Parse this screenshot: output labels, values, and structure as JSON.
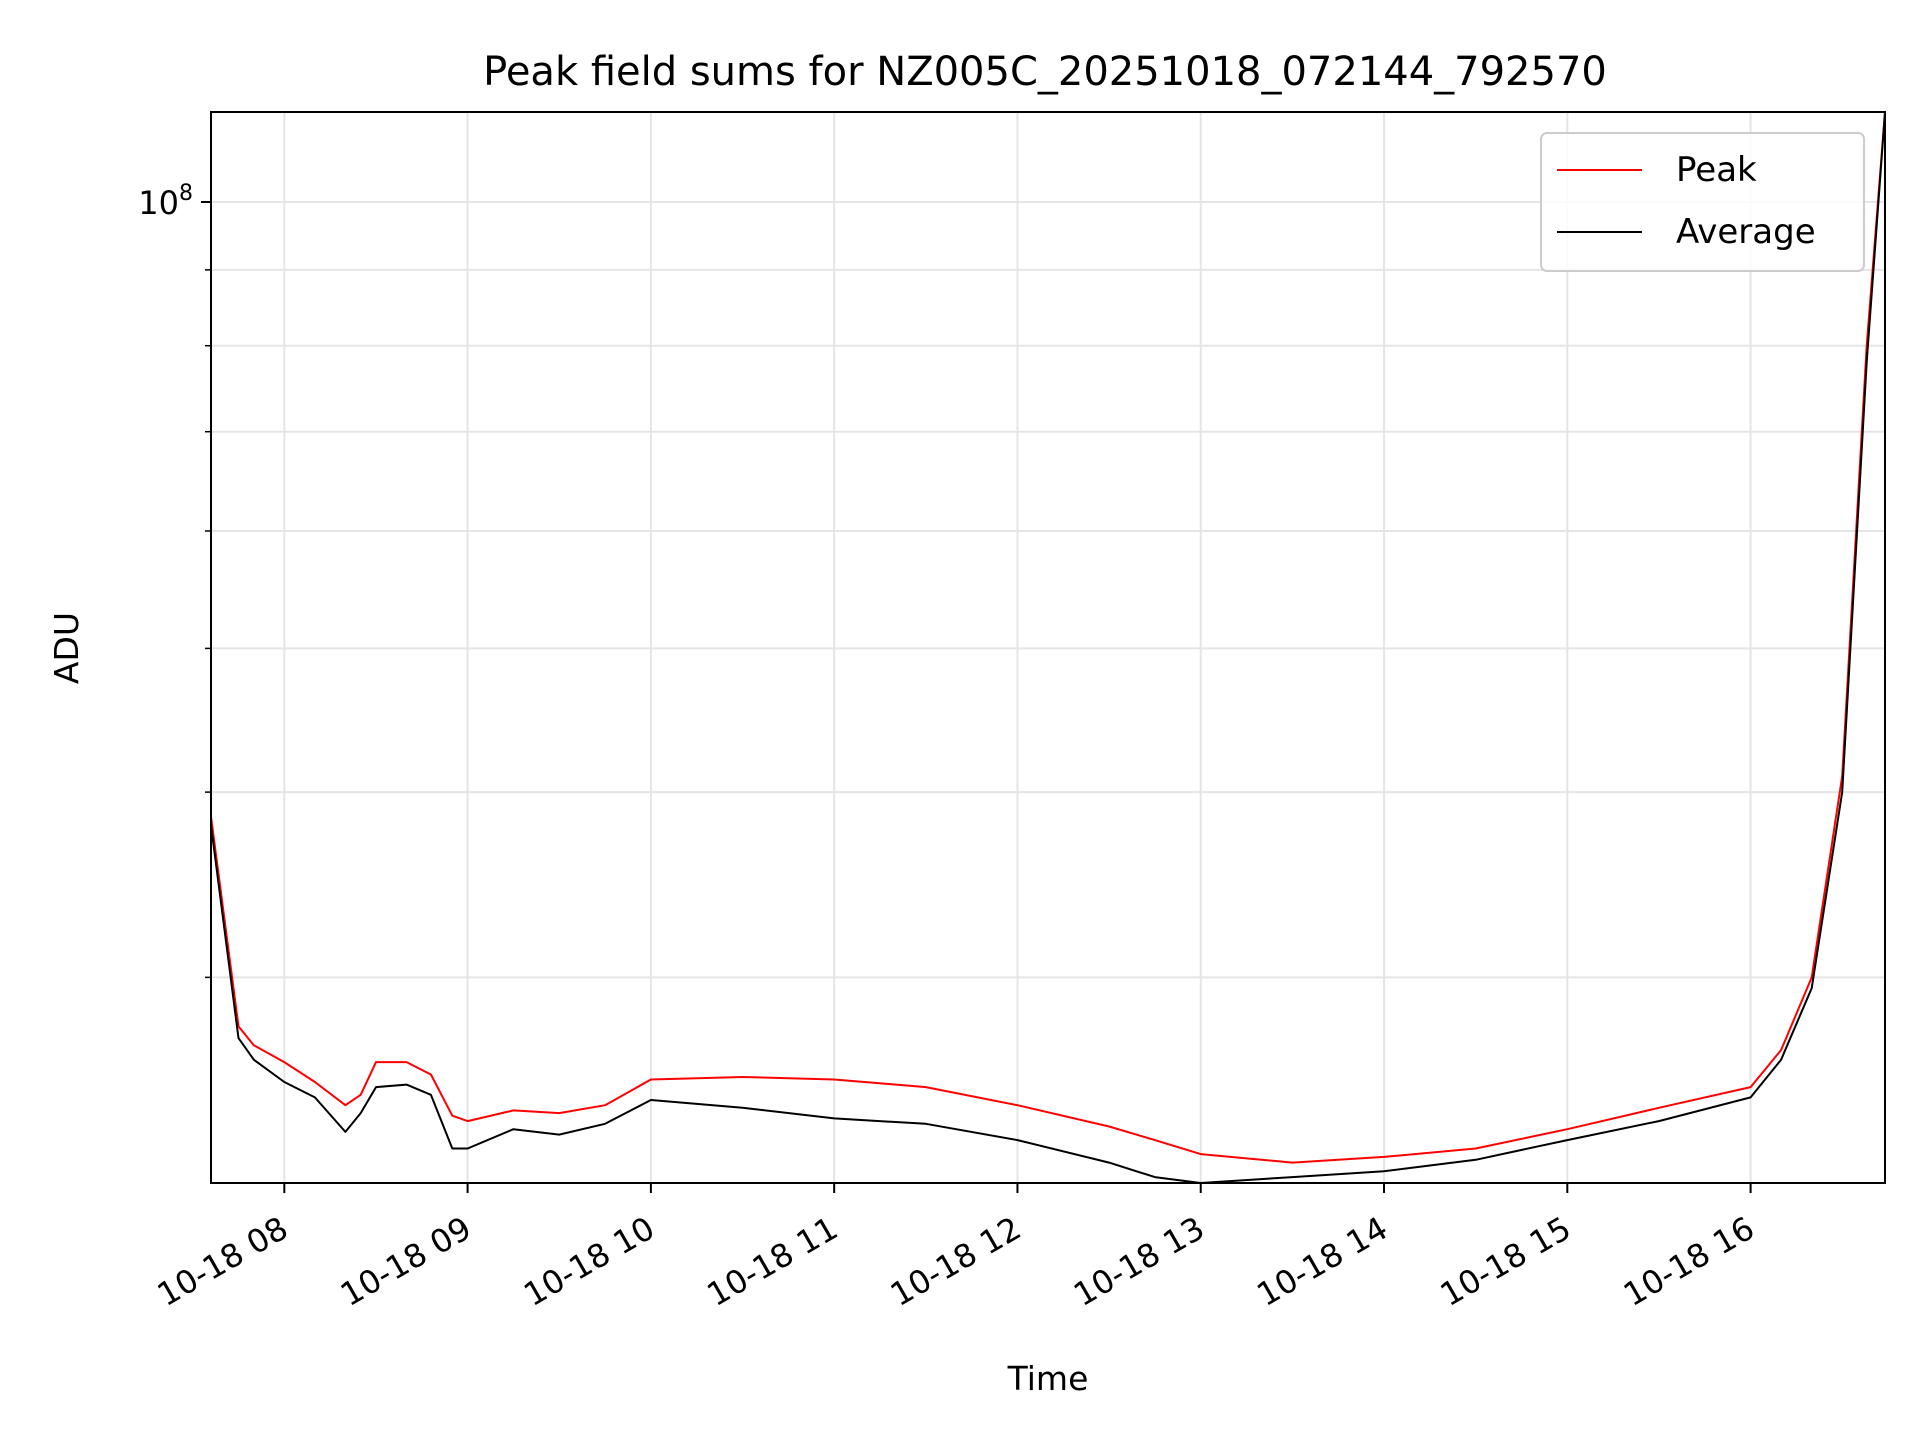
{
  "chart_data": {
    "type": "line",
    "title": "Peak field sums for NZ005C_20251018_072144_792570",
    "xlabel": "Time",
    "ylabel": "ADU",
    "yscale": "log",
    "ylim": [
      21800000,
      115000000
    ],
    "xlim": [
      "2025-10-18 07:36",
      "2025-10-18 16:44"
    ],
    "x_tick_labels": [
      "10-18 08",
      "10-18 09",
      "10-18 10",
      "10-18 11",
      "10-18 12",
      "10-18 13",
      "10-18 14",
      "10-18 15",
      "10-18 16"
    ],
    "x_ticks": [
      "2025-10-18 08:00",
      "2025-10-18 09:00",
      "2025-10-18 10:00",
      "2025-10-18 11:00",
      "2025-10-18 12:00",
      "2025-10-18 13:00",
      "2025-10-18 14:00",
      "2025-10-18 15:00",
      "2025-10-18 16:00"
    ],
    "y_major_ticks": [
      100000000
    ],
    "y_major_tick_labels": [
      "10^8"
    ],
    "y_minor_ticks": [
      30000000,
      40000000,
      50000000,
      60000000,
      70000000,
      80000000,
      90000000
    ],
    "grid": true,
    "legend_position": "top-right",
    "series": [
      {
        "name": "Peak",
        "color": "#ff0000",
        "x": [
          "2025-10-18 07:36",
          "2025-10-18 07:45",
          "2025-10-18 07:50",
          "2025-10-18 08:00",
          "2025-10-18 08:10",
          "2025-10-18 08:20",
          "2025-10-18 08:25",
          "2025-10-18 08:30",
          "2025-10-18 08:40",
          "2025-10-18 08:48",
          "2025-10-18 08:55",
          "2025-10-18 09:00",
          "2025-10-18 09:15",
          "2025-10-18 09:30",
          "2025-10-18 09:45",
          "2025-10-18 10:00",
          "2025-10-18 10:30",
          "2025-10-18 11:00",
          "2025-10-18 11:30",
          "2025-10-18 12:00",
          "2025-10-18 12:30",
          "2025-10-18 12:45",
          "2025-10-18 13:00",
          "2025-10-18 13:30",
          "2025-10-18 14:00",
          "2025-10-18 14:30",
          "2025-10-18 15:00",
          "2025-10-18 15:30",
          "2025-10-18 16:00",
          "2025-10-18 16:10",
          "2025-10-18 16:20",
          "2025-10-18 16:30",
          "2025-10-18 16:38",
          "2025-10-18 16:44"
        ],
        "y": [
          38500000,
          27800000,
          27000000,
          26300000,
          25500000,
          24600000,
          25000000,
          26300000,
          26300000,
          25800000,
          24200000,
          24000000,
          24400000,
          24300000,
          24600000,
          25600000,
          25700000,
          25600000,
          25300000,
          24600000,
          23800000,
          23300000,
          22800000,
          22500000,
          22700000,
          23000000,
          23700000,
          24500000,
          25300000,
          26800000,
          30000000,
          41000000,
          80000000,
          115000000
        ]
      },
      {
        "name": "Average",
        "color": "#000000",
        "x": [
          "2025-10-18 07:36",
          "2025-10-18 07:45",
          "2025-10-18 07:50",
          "2025-10-18 08:00",
          "2025-10-18 08:10",
          "2025-10-18 08:20",
          "2025-10-18 08:25",
          "2025-10-18 08:30",
          "2025-10-18 08:40",
          "2025-10-18 08:48",
          "2025-10-18 08:55",
          "2025-10-18 09:00",
          "2025-10-18 09:15",
          "2025-10-18 09:30",
          "2025-10-18 09:45",
          "2025-10-18 10:00",
          "2025-10-18 10:30",
          "2025-10-18 11:00",
          "2025-10-18 11:30",
          "2025-10-18 12:00",
          "2025-10-18 12:30",
          "2025-10-18 12:45",
          "2025-10-18 13:00",
          "2025-10-18 13:30",
          "2025-10-18 14:00",
          "2025-10-18 14:30",
          "2025-10-18 15:00",
          "2025-10-18 15:30",
          "2025-10-18 16:00",
          "2025-10-18 16:10",
          "2025-10-18 16:20",
          "2025-10-18 16:30",
          "2025-10-18 16:38",
          "2025-10-18 16:44"
        ],
        "y": [
          38000000,
          27300000,
          26400000,
          25500000,
          24900000,
          23600000,
          24300000,
          25300000,
          25400000,
          25000000,
          23000000,
          23000000,
          23700000,
          23500000,
          23900000,
          24800000,
          24500000,
          24100000,
          23900000,
          23300000,
          22500000,
          22000000,
          21800000,
          22000000,
          22200000,
          22600000,
          23300000,
          24000000,
          24900000,
          26400000,
          29500000,
          40000000,
          78000000,
          115000000
        ]
      }
    ]
  }
}
